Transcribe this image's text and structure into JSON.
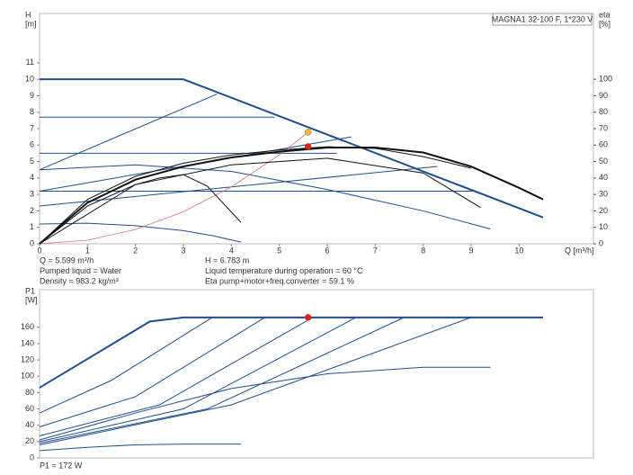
{
  "chart_data": [
    {
      "type": "line",
      "title": "MAGNA1 32-100 F, 1*230 V",
      "ylabel": [
        "H",
        "[m]"
      ],
      "y2label": [
        "eta",
        "[%]"
      ],
      "xlabel": "Q [m³/h]",
      "xlim": [
        0,
        11.55
      ],
      "xticks": [
        0,
        1,
        2,
        3,
        4,
        5,
        6,
        7,
        8,
        9,
        10
      ],
      "ylim": [
        0,
        14
      ],
      "yticks": [
        0,
        1,
        2,
        3,
        4,
        5,
        6,
        7,
        8,
        9,
        10,
        11
      ],
      "y2lim": [
        0,
        140
      ],
      "y2ticks": [
        0,
        10,
        20,
        30,
        40,
        50,
        60,
        70,
        80,
        90,
        100
      ],
      "y2color": "#1e6b1e",
      "grid": false,
      "series": [
        {
          "color": "#1f4f8f",
          "width": 2,
          "x": [
            0,
            3,
            10.5
          ],
          "values": [
            10,
            10,
            1.6
          ]
        },
        {
          "color": "#1f4f8f",
          "width": 1,
          "x": [
            0,
            3.7
          ],
          "values": [
            4.5,
            9.1
          ]
        },
        {
          "color": "#1f4f8f",
          "width": 1,
          "x": [
            0,
            6.5
          ],
          "values": [
            3.2,
            6.5
          ]
        },
        {
          "color": "#1f4f8f",
          "width": 1,
          "x": [
            0,
            8.3
          ],
          "values": [
            2.3,
            4.7
          ]
        },
        {
          "color": "#1f4f8f",
          "width": 1,
          "x": [
            0,
            4.9
          ],
          "values": [
            7.7,
            7.7
          ]
        },
        {
          "color": "#1f4f8f",
          "width": 1,
          "x": [
            0,
            6.2
          ],
          "values": [
            5.5,
            5.5
          ]
        },
        {
          "color": "#1f4f8f",
          "width": 1,
          "x": [
            0,
            9.1
          ],
          "values": [
            3.2,
            3.2
          ]
        },
        {
          "color": "#1f4f8f",
          "width": 1,
          "x": [
            0,
            2,
            4,
            6,
            8,
            9.4
          ],
          "values": [
            4.5,
            4.8,
            4.4,
            3.3,
            2.0,
            0.9
          ]
        },
        {
          "color": "#1f4f8f",
          "width": 1,
          "x": [
            0,
            1,
            2,
            3,
            3.6,
            4.2
          ],
          "values": [
            1.2,
            1.25,
            1.1,
            0.8,
            0.5,
            0.1
          ]
        },
        {
          "color": "#e07070",
          "width": 0.8,
          "x": [
            0,
            1,
            2,
            3,
            4,
            5,
            5.6
          ],
          "values": [
            0,
            0.22,
            0.87,
            1.95,
            3.46,
            5.41,
            6.78
          ]
        },
        {
          "color": "#111111",
          "width": 2,
          "axis": "y2",
          "x": [
            0,
            1,
            2,
            3,
            4,
            5,
            6,
            7,
            8,
            9,
            10,
            10.5
          ],
          "values": [
            0,
            25,
            39,
            47,
            52.5,
            56,
            58.5,
            58.5,
            55.5,
            47,
            34,
            27
          ]
        },
        {
          "color": "#111111",
          "width": 1,
          "axis": "y2",
          "x": [
            0,
            1,
            2,
            2.5,
            3,
            3.5,
            4.2
          ],
          "values": [
            0,
            23,
            36,
            40,
            42,
            35,
            13
          ]
        },
        {
          "color": "#111111",
          "width": 1,
          "axis": "y2",
          "x": [
            0,
            2,
            4,
            6,
            8,
            9.2
          ],
          "values": [
            0,
            36,
            48,
            52,
            43,
            22
          ]
        },
        {
          "color": "#111111",
          "width": 1,
          "axis": "y2",
          "x": [
            0,
            1,
            2,
            3,
            4,
            5,
            6,
            7,
            8,
            9
          ],
          "values": [
            0,
            27,
            41,
            49,
            54,
            57,
            59,
            58,
            53,
            46
          ]
        }
      ],
      "points": [
        {
          "x": 5.599,
          "y": 6.783,
          "color": "#f5b942"
        },
        {
          "x": 5.599,
          "y": 59.1,
          "color": "#e02020",
          "axis": "y2"
        }
      ],
      "annotations": [
        "Q = 5.599 m³/h",
        "Pumped liquid = Water",
        "Density = 983.2 kg/m³",
        "H = 6.783 m",
        "Liquid temperature during operation = 60 °C",
        "Eta pump+motor+freq.converter = 59.1 %"
      ]
    },
    {
      "type": "line",
      "ylabel": [
        "P1",
        "[W]"
      ],
      "xlim": [
        0,
        11.55
      ],
      "ylim": [
        0,
        206
      ],
      "yticks": [
        0,
        20,
        40,
        60,
        80,
        100,
        120,
        140,
        160
      ],
      "grid": false,
      "series": [
        {
          "color": "#1f4f8f",
          "width": 2,
          "x": [
            0,
            2.3,
            3,
            10.5
          ],
          "values": [
            86,
            167,
            172,
            172
          ]
        },
        {
          "color": "#1f4f8f",
          "width": 1,
          "x": [
            0,
            1.5,
            3.6
          ],
          "values": [
            55,
            95,
            172
          ]
        },
        {
          "color": "#1f4f8f",
          "width": 1,
          "x": [
            0,
            2,
            4.7
          ],
          "values": [
            38,
            75,
            172
          ]
        },
        {
          "color": "#1f4f8f",
          "width": 1,
          "x": [
            0,
            2.5,
            5.7
          ],
          "values": [
            27,
            65,
            172
          ]
        },
        {
          "color": "#1f4f8f",
          "width": 1,
          "x": [
            0,
            3,
            6.6
          ],
          "values": [
            20,
            60,
            172
          ]
        },
        {
          "color": "#1f4f8f",
          "width": 1,
          "x": [
            0,
            3.5,
            7.6
          ],
          "values": [
            18,
            60,
            172
          ]
        },
        {
          "color": "#1f4f8f",
          "width": 1,
          "x": [
            0,
            4,
            9
          ],
          "values": [
            16,
            65,
            172
          ]
        },
        {
          "color": "#1f4f8f",
          "width": 1,
          "x": [
            0,
            2,
            4,
            6,
            8,
            9.4
          ],
          "values": [
            22,
            55,
            85,
            103,
            111,
            111
          ]
        },
        {
          "color": "#1f4f8f",
          "width": 1,
          "x": [
            0,
            1,
            2,
            3,
            4.2
          ],
          "values": [
            9,
            13,
            16,
            17,
            17
          ]
        }
      ],
      "points": [
        {
          "x": 5.599,
          "y": 172,
          "color": "#e02020"
        }
      ],
      "annotations": [
        "P1 = 172 W"
      ]
    }
  ]
}
